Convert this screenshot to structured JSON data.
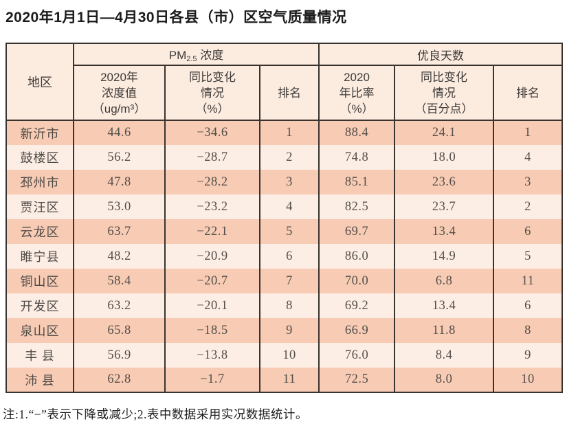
{
  "title": "2020年1月1日—4月30日各县（市）区空气质量情况",
  "note": "注:1.“−”表示下降或减少;2.表中数据采用实况数据统计。",
  "colors": {
    "row_dark_bg": "#f7cbb4",
    "row_light_bg": "#fdeee5",
    "header_bg": "#fcece0",
    "border": "#38332f",
    "title_text": "#1b1b1b",
    "body_text": "#544f4a"
  },
  "table": {
    "header": {
      "region": "地区",
      "pm_group": {
        "base": "PM",
        "sub": "2.5",
        "rest": " 浓度"
      },
      "good_group": "优良天数",
      "sub": [
        "2020年\n浓度值\n（ug/m³）",
        "同比变化\n情况\n（%）",
        "排名",
        "2020\n年比率\n（%）",
        "同比变化\n情况\n（百分点）",
        "排名"
      ]
    },
    "rows": [
      {
        "region": "新沂市",
        "pm_value": "44.6",
        "pm_change": "−34.6",
        "pm_rank": "1",
        "good_ratio": "88.4",
        "good_change": "24.1",
        "good_rank": "1"
      },
      {
        "region": "鼓楼区",
        "pm_value": "56.2",
        "pm_change": "−28.7",
        "pm_rank": "2",
        "good_ratio": "74.8",
        "good_change": "18.0",
        "good_rank": "4"
      },
      {
        "region": "邳州市",
        "pm_value": "47.8",
        "pm_change": "−28.2",
        "pm_rank": "3",
        "good_ratio": "85.1",
        "good_change": "23.6",
        "good_rank": "3"
      },
      {
        "region": "贾汪区",
        "pm_value": "53.0",
        "pm_change": "−23.2",
        "pm_rank": "4",
        "good_ratio": "82.5",
        "good_change": "23.7",
        "good_rank": "2"
      },
      {
        "region": "云龙区",
        "pm_value": "63.7",
        "pm_change": "−22.1",
        "pm_rank": "5",
        "good_ratio": "69.7",
        "good_change": "13.4",
        "good_rank": "6"
      },
      {
        "region": "睢宁县",
        "pm_value": "48.2",
        "pm_change": "−20.9",
        "pm_rank": "6",
        "good_ratio": "86.0",
        "good_change": "14.9",
        "good_rank": "5"
      },
      {
        "region": "铜山区",
        "pm_value": "58.4",
        "pm_change": "−20.7",
        "pm_rank": "7",
        "good_ratio": "70.0",
        "good_change": "6.8",
        "good_rank": "11"
      },
      {
        "region": "开发区",
        "pm_value": "63.2",
        "pm_change": "−20.1",
        "pm_rank": "8",
        "good_ratio": "69.2",
        "good_change": "13.4",
        "good_rank": "6"
      },
      {
        "region": "泉山区",
        "pm_value": "65.8",
        "pm_change": "−18.5",
        "pm_rank": "9",
        "good_ratio": "66.9",
        "good_change": "11.8",
        "good_rank": "8"
      },
      {
        "region": "丰 县",
        "pm_value": "56.9",
        "pm_change": "−13.8",
        "pm_rank": "10",
        "good_ratio": "76.0",
        "good_change": "8.4",
        "good_rank": "9"
      },
      {
        "region": "沛 县",
        "pm_value": "62.8",
        "pm_change": "−1.7",
        "pm_rank": "11",
        "good_ratio": "72.5",
        "good_change": "8.0",
        "good_rank": "10"
      }
    ]
  }
}
